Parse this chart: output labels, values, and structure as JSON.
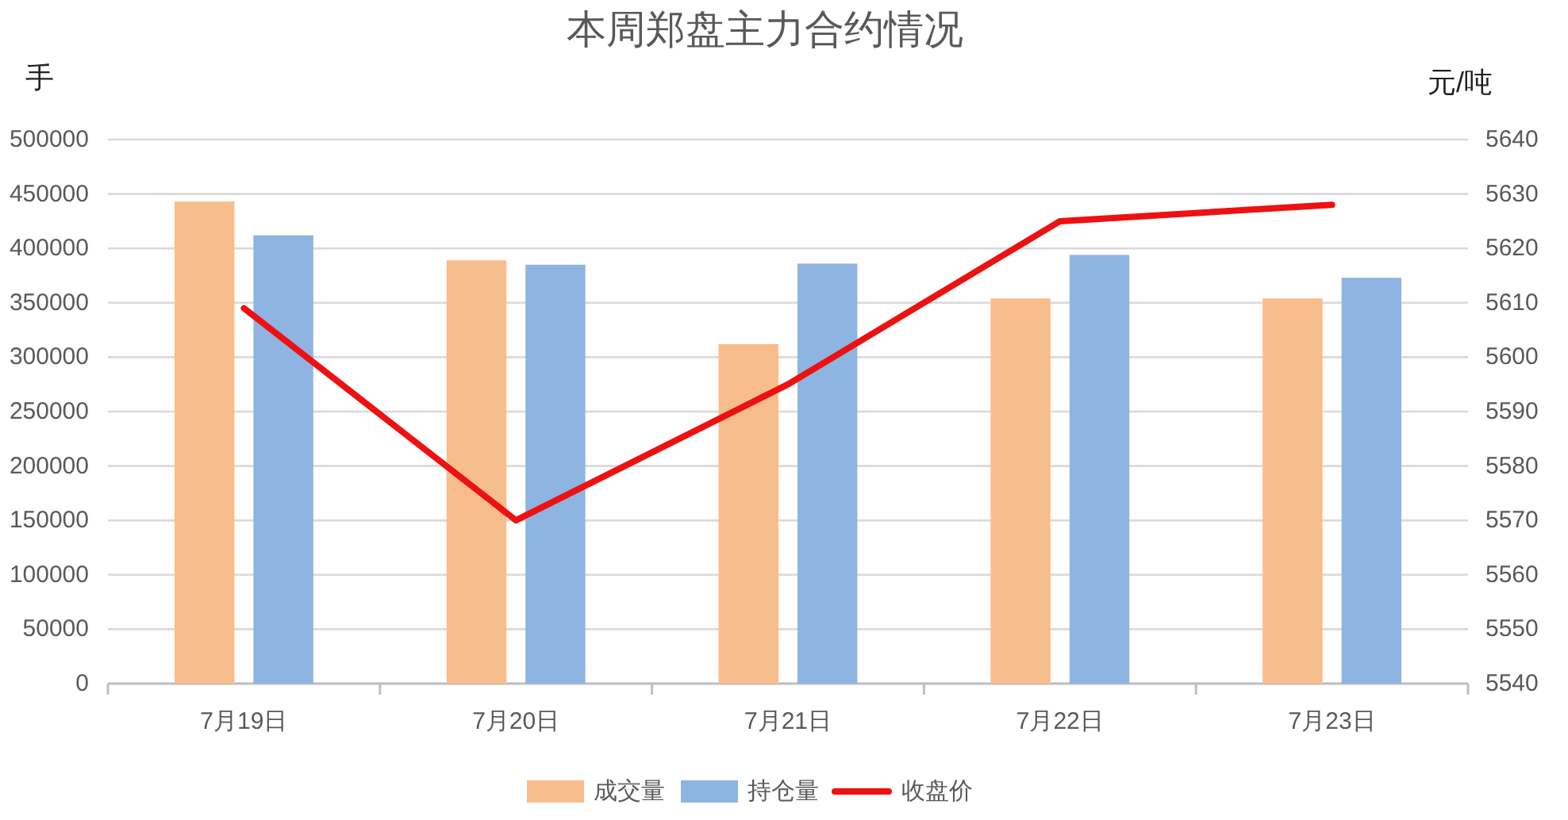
{
  "chart_data": {
    "type": "bar",
    "title": "本周郑盘主力合约情况",
    "ylabel": "手",
    "y2label": "元/吨",
    "categories": [
      "7月19日",
      "7月20日",
      "7月21日",
      "7月22日",
      "7月23日"
    ],
    "series": [
      {
        "name": "成交量",
        "color": "#f8bd8c",
        "values": [
          443000,
          389000,
          312000,
          354000,
          354000
        ]
      },
      {
        "name": "持仓量",
        "color": "#8eb4e2",
        "values": [
          412000,
          385000,
          386000,
          394000,
          373000
        ]
      },
      {
        "name": "收盘价",
        "type": "line",
        "axis": "y2",
        "color": "#ee1111",
        "values": [
          5609,
          5570,
          5595,
          5625,
          5628
        ]
      }
    ],
    "ylim": [
      0,
      500000
    ],
    "yticks": [
      0,
      50000,
      100000,
      150000,
      200000,
      250000,
      300000,
      350000,
      400000,
      450000,
      500000
    ],
    "y2lim": [
      5540,
      5640
    ],
    "y2ticks": [
      5540,
      5550,
      5560,
      5570,
      5580,
      5590,
      5600,
      5610,
      5620,
      5630,
      5640
    ],
    "grid": "y",
    "legend": "bottom"
  }
}
